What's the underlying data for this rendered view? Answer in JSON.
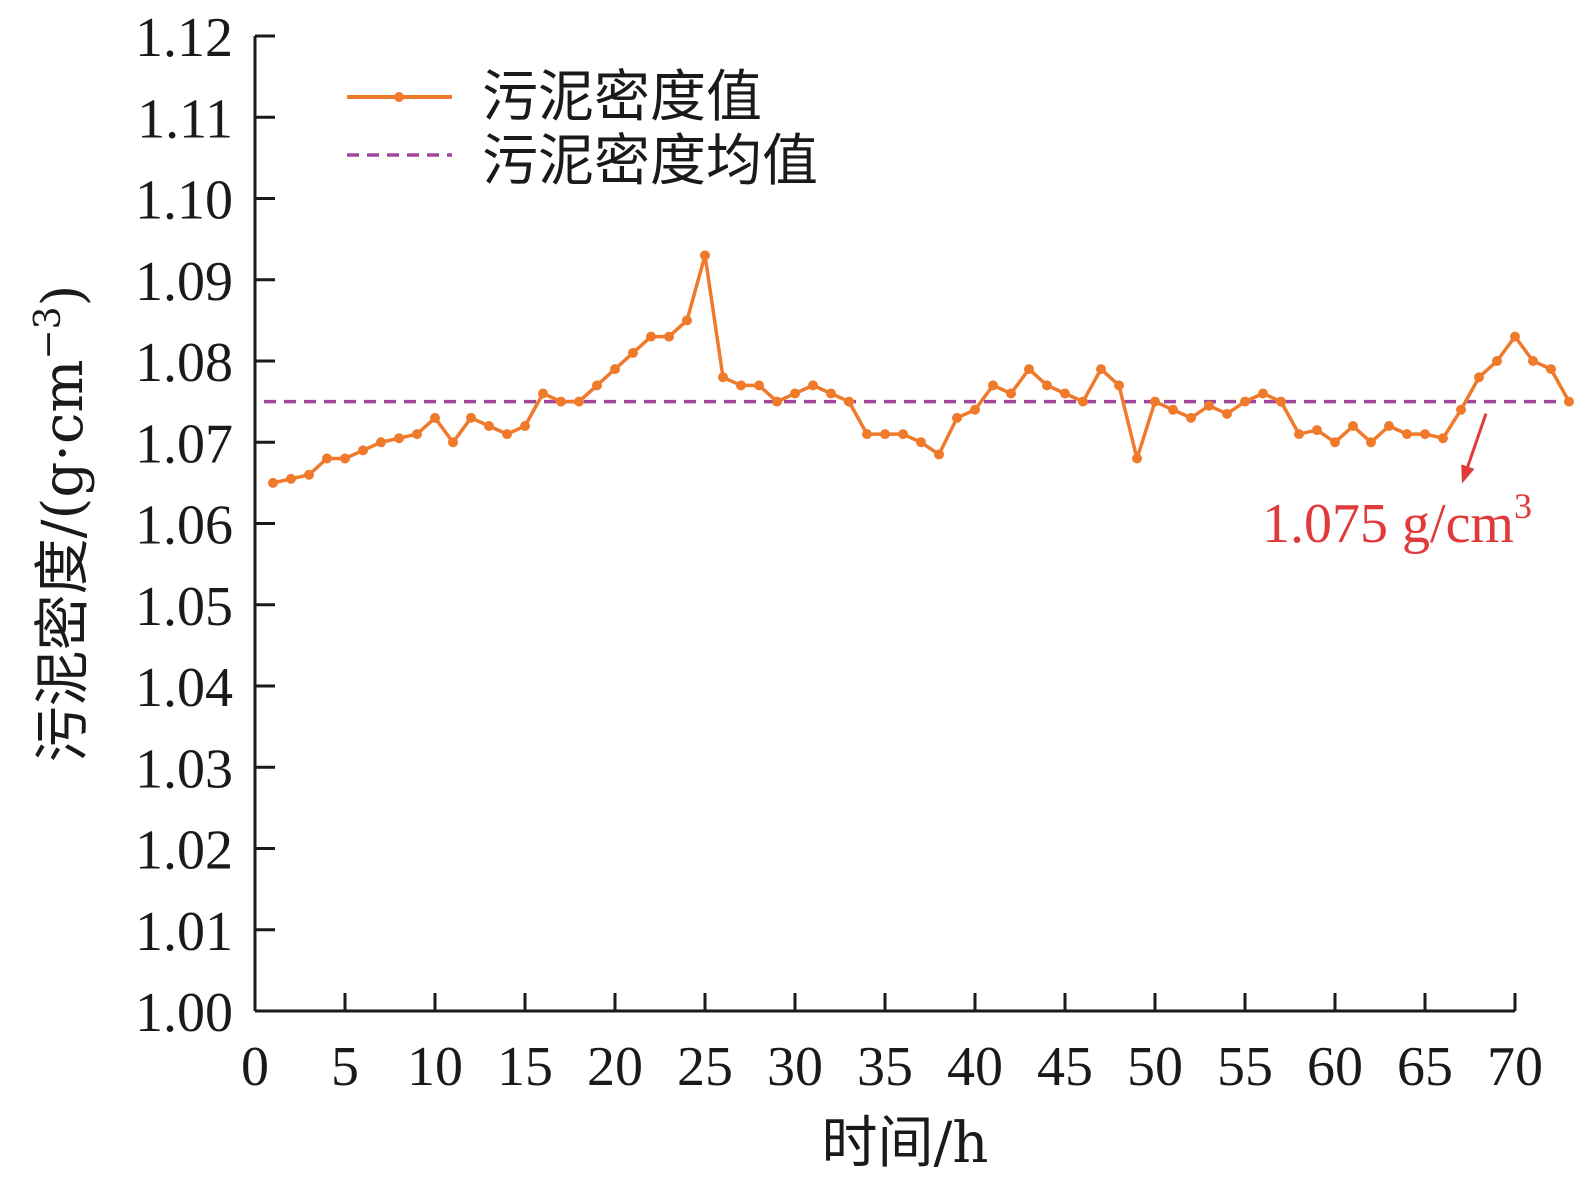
{
  "chart_data": {
    "type": "line",
    "xlabel": "时间/h",
    "ylabel_main": "污泥密度/(g·cm",
    "ylabel_sup": "−3",
    "ylabel_close": ")",
    "xlim": [
      0,
      72
    ],
    "ylim": [
      1.0,
      1.12
    ],
    "x_ticks": [
      0,
      5,
      10,
      15,
      20,
      25,
      30,
      35,
      40,
      45,
      50,
      55,
      60,
      65,
      70
    ],
    "x_tick_labels": [
      "0",
      "5",
      "10",
      "15",
      "20",
      "25",
      "30",
      "35",
      "40",
      "45",
      "50",
      "55",
      "60",
      "65",
      "70"
    ],
    "y_ticks": [
      1.0,
      1.01,
      1.02,
      1.03,
      1.04,
      1.05,
      1.06,
      1.07,
      1.08,
      1.09,
      1.1,
      1.11,
      1.12
    ],
    "y_tick_labels": [
      "1.00",
      "1.01",
      "1.02",
      "1.03",
      "1.04",
      "1.05",
      "1.06",
      "1.07",
      "1.08",
      "1.09",
      "1.10",
      "1.11",
      "1.12"
    ],
    "legend_placement": "top-left",
    "series": [
      {
        "name": "污泥密度值",
        "color": "#f07a2c",
        "style": "solid-line-with-markers",
        "x": [
          1,
          2,
          3,
          4,
          5,
          6,
          7,
          8,
          9,
          10,
          11,
          12,
          13,
          14,
          15,
          16,
          17,
          18,
          19,
          20,
          21,
          22,
          23,
          24,
          25,
          26,
          27,
          28,
          29,
          30,
          31,
          32,
          33,
          34,
          35,
          36,
          37,
          38,
          39,
          40,
          41,
          42,
          43,
          44,
          45,
          46,
          47,
          48,
          49,
          50,
          51,
          52,
          53,
          54,
          55,
          56,
          57,
          58,
          59,
          60,
          61,
          62,
          63,
          64,
          65,
          66,
          67,
          68,
          69,
          70,
          71,
          72,
          73
        ],
        "y": [
          1.065,
          1.0655,
          1.066,
          1.068,
          1.068,
          1.069,
          1.07,
          1.0705,
          1.071,
          1.073,
          1.07,
          1.073,
          1.072,
          1.071,
          1.072,
          1.076,
          1.075,
          1.075,
          1.077,
          1.079,
          1.081,
          1.083,
          1.083,
          1.085,
          1.093,
          1.078,
          1.077,
          1.077,
          1.075,
          1.076,
          1.077,
          1.076,
          1.075,
          1.071,
          1.071,
          1.071,
          1.07,
          1.0685,
          1.073,
          1.074,
          1.077,
          1.076,
          1.079,
          1.077,
          1.076,
          1.075,
          1.079,
          1.077,
          1.068,
          1.075,
          1.074,
          1.073,
          1.0745,
          1.0735,
          1.075,
          1.076,
          1.075,
          1.071,
          1.0715,
          1.07,
          1.072,
          1.07,
          1.072,
          1.071,
          1.071,
          1.0705,
          1.074,
          1.078,
          1.08,
          1.083,
          1.08,
          1.079,
          1.075
        ]
      },
      {
        "name": "污泥密度均值",
        "color": "#a0479c",
        "style": "dashed-line",
        "value": 1.075
      }
    ],
    "annotation": {
      "text": "1.075 g/cm",
      "sup": "3",
      "color": "#e03a3a",
      "points_to_x": 68.5,
      "points_to_y": 1.075
    }
  }
}
